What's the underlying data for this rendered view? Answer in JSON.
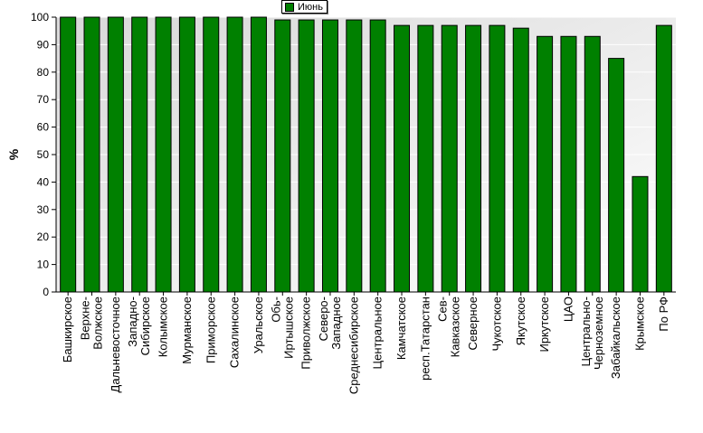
{
  "colors": {
    "bar": "#008000",
    "bar_stroke": "#000000",
    "plot_bg_top": "#d8d8d8",
    "plot_bg_bottom": "#ffffff",
    "grid": "#ffffff",
    "axis": "#000000"
  },
  "legend": {
    "label": "Июнь"
  },
  "chart_data": {
    "type": "bar",
    "title": "",
    "xlabel": "",
    "ylabel": "%",
    "ylim": [
      0,
      100
    ],
    "yticks": [
      0,
      10,
      20,
      30,
      40,
      50,
      60,
      70,
      80,
      90,
      100
    ],
    "grid": true,
    "legend_position": "top-center",
    "categories": [
      [
        "Башкирское"
      ],
      [
        "Верхне-",
        "Волжское"
      ],
      [
        "Дальневосточное"
      ],
      [
        "Западно-",
        "Сибирское"
      ],
      [
        "Колымское"
      ],
      [
        "Мурманское"
      ],
      [
        "Приморское"
      ],
      [
        "Сахалинское"
      ],
      [
        "Уральское"
      ],
      [
        "Обь-",
        "Иртышское"
      ],
      [
        "Приволжское"
      ],
      [
        "Северо-",
        "Западное"
      ],
      [
        "Среднесибирское"
      ],
      [
        "Центральное"
      ],
      [
        "Камчатское"
      ],
      [
        "респ.Татарстан"
      ],
      [
        "Сев-",
        "Кавказское"
      ],
      [
        "Северное"
      ],
      [
        "Чукотское"
      ],
      [
        "Якутское"
      ],
      [
        "Иркутское"
      ],
      [
        "ЦАО"
      ],
      [
        "Центрально-",
        "Черноземное"
      ],
      [
        "Забайкальское"
      ],
      [
        "Крымское"
      ],
      [
        "По РФ"
      ]
    ],
    "series": [
      {
        "name": "Июнь",
        "values": [
          100,
          100,
          100,
          100,
          100,
          100,
          100,
          100,
          100,
          99,
          99,
          99,
          99,
          99,
          97,
          97,
          97,
          97,
          97,
          96,
          93,
          93,
          93,
          85,
          42,
          97
        ]
      }
    ]
  }
}
